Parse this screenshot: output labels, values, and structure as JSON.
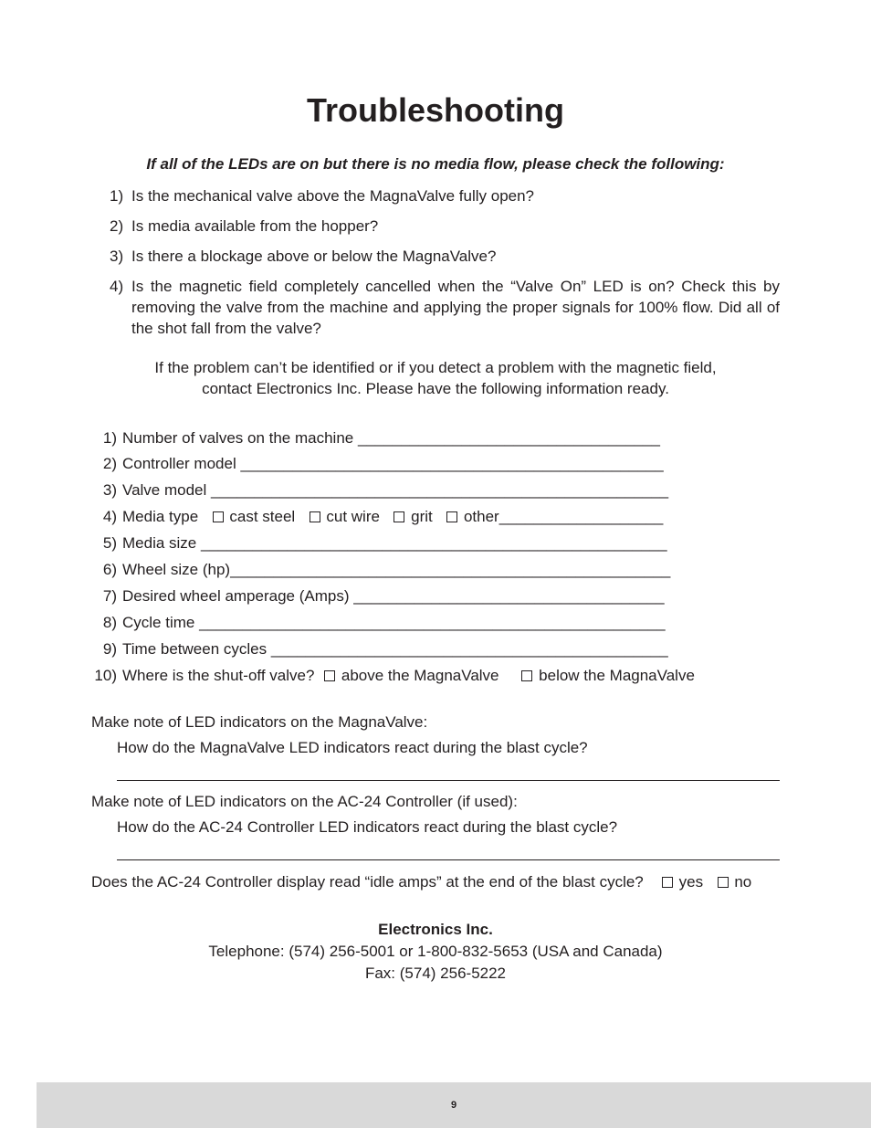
{
  "title": "Troubleshooting",
  "intro": "If all of the LEDs are on but there is no media flow, please check the following:",
  "checks": [
    {
      "n": "1)",
      "t": "Is the mechanical valve above the MagnaValve fully open?"
    },
    {
      "n": "2)",
      "t": "Is media available from the hopper?"
    },
    {
      "n": "3)",
      "t": "Is there a blockage above or below the MagnaValve?"
    },
    {
      "n": "4)",
      "t": "Is the magnetic field completely cancelled when the “Valve On” LED is on? Check this by removing the valve from the machine and applying the proper signals for 100% flow. Did all of the shot fall from the valve?"
    }
  ],
  "contact_note": "If the problem can’t be identified or if you detect a problem with the magnetic field, contact Electronics Inc. Please have the following information ready.",
  "info": [
    {
      "n": "1)",
      "label": "Number of valves on the machine",
      "blank": "___________________________________"
    },
    {
      "n": "2)",
      "label": "Controller model",
      "blank": "_________________________________________________"
    },
    {
      "n": "3)",
      "label": "Valve model",
      "blank": "_____________________________________________________"
    },
    {
      "n": "4)",
      "label": "Media type",
      "options": [
        "cast steel",
        "cut wire",
        "grit",
        "other"
      ],
      "trailing_blank": "___________________"
    },
    {
      "n": "5)",
      "label": "Media size",
      "blank": "______________________________________________________"
    },
    {
      "n": "6)",
      "label": "Wheel size (hp)",
      "blank": "___________________________________________________"
    },
    {
      "n": "7)",
      "label": "Desired wheel amperage (Amps)",
      "blank": "____________________________________"
    },
    {
      "n": "8)",
      "label": "Cycle time",
      "blank": "______________________________________________________"
    },
    {
      "n": "9)",
      "label": "Time between cycles",
      "blank": "______________________________________________"
    },
    {
      "n": "10)",
      "label": "Where is the shut-off valve?",
      "options": [
        "above the MagnaValve",
        "below the MagnaValve"
      ]
    }
  ],
  "notes": {
    "mv_title": "Make note of LED indicators on the MagnaValve:",
    "mv_q": "How do the MagnaValve LED indicators react during the blast cycle?",
    "ac_title": "Make note of LED indicators on the AC-24 Controller (if used):",
    "ac_q": "How do the AC-24 Controller LED indicators react during the blast cycle?"
  },
  "display_q": {
    "text": "Does the AC-24 Controller display read “idle amps” at the end of the blast cycle?",
    "yes": "yes",
    "no": "no"
  },
  "company": {
    "name": "Electronics Inc.",
    "phone": "Telephone: (574) 256-5001 or 1-800-832-5653 (USA and Canada)",
    "fax": "Fax: (574) 256-5222"
  },
  "page_number": "9",
  "colors": {
    "text": "#231f20",
    "background": "#ffffff",
    "footer_bg": "#d9d9d9"
  }
}
